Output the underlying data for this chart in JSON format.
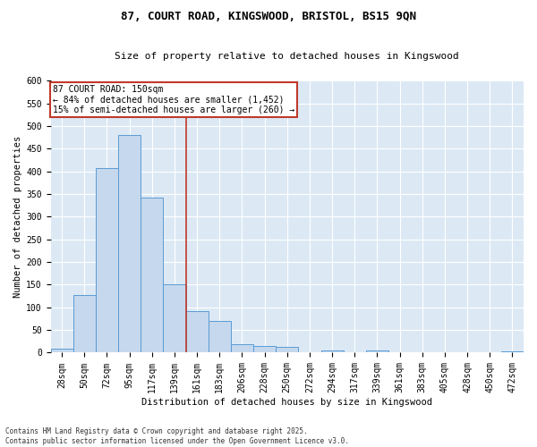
{
  "title_line1": "87, COURT ROAD, KINGSWOOD, BRISTOL, BS15 9QN",
  "title_line2": "Size of property relative to detached houses in Kingswood",
  "xlabel": "Distribution of detached houses by size in Kingswood",
  "ylabel": "Number of detached properties",
  "bar_color": "#c5d8ed",
  "bar_edge_color": "#5b9bd5",
  "categories": [
    "28sqm",
    "50sqm",
    "72sqm",
    "95sqm",
    "117sqm",
    "139sqm",
    "161sqm",
    "183sqm",
    "206sqm",
    "228sqm",
    "250sqm",
    "272sqm",
    "294sqm",
    "317sqm",
    "339sqm",
    "361sqm",
    "383sqm",
    "405sqm",
    "428sqm",
    "450sqm",
    "472sqm"
  ],
  "values": [
    8,
    128,
    408,
    480,
    343,
    150,
    91,
    70,
    19,
    15,
    13,
    0,
    5,
    0,
    4,
    0,
    0,
    0,
    0,
    0,
    2
  ],
  "ylim": [
    0,
    600
  ],
  "yticks": [
    0,
    50,
    100,
    150,
    200,
    250,
    300,
    350,
    400,
    450,
    500,
    550,
    600
  ],
  "vline_x": 5.5,
  "vline_color": "#c0392b",
  "annotation_title": "87 COURT ROAD: 150sqm",
  "annotation_line1": "← 84% of detached houses are smaller (1,452)",
  "annotation_line2": "15% of semi-detached houses are larger (260) →",
  "annotation_box_color": "#c0392b",
  "fig_bg_color": "#ffffff",
  "plot_bg_color": "#dce9f5",
  "grid_color": "#ffffff",
  "footer_line1": "Contains HM Land Registry data © Crown copyright and database right 2025.",
  "footer_line2": "Contains public sector information licensed under the Open Government Licence v3.0.",
  "title1_fontsize": 9,
  "title2_fontsize": 8,
  "ylabel_fontsize": 7.5,
  "xlabel_fontsize": 7.5,
  "tick_fontsize": 7,
  "ann_fontsize": 7,
  "footer_fontsize": 5.5
}
